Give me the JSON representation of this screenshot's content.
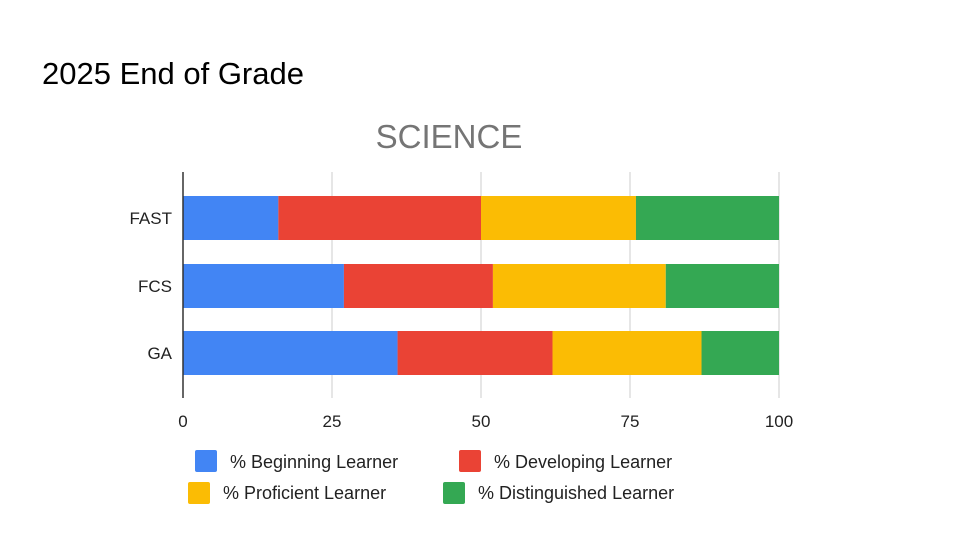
{
  "slide": {
    "title": "2025 End of Grade"
  },
  "chart_data": {
    "type": "bar",
    "orientation": "horizontal",
    "stacked": true,
    "title": "SCIENCE",
    "categories": [
      "FAST",
      "FCS",
      "GA"
    ],
    "series": [
      {
        "name": "% Beginning Learner",
        "color": "#4285F4",
        "values": [
          16,
          27,
          36
        ]
      },
      {
        "name": "% Developing Learner",
        "color": "#EA4335",
        "values": [
          34,
          25,
          26
        ]
      },
      {
        "name": "% Proficient Learner",
        "color": "#FBBC04",
        "values": [
          26,
          29,
          25
        ]
      },
      {
        "name": "% Distinguished Learner",
        "color": "#34A853",
        "values": [
          24,
          19,
          13
        ]
      }
    ],
    "xlim": [
      0,
      100
    ],
    "xticks": [
      0,
      25,
      50,
      75,
      100
    ],
    "grid": true,
    "legend": "bottom"
  }
}
